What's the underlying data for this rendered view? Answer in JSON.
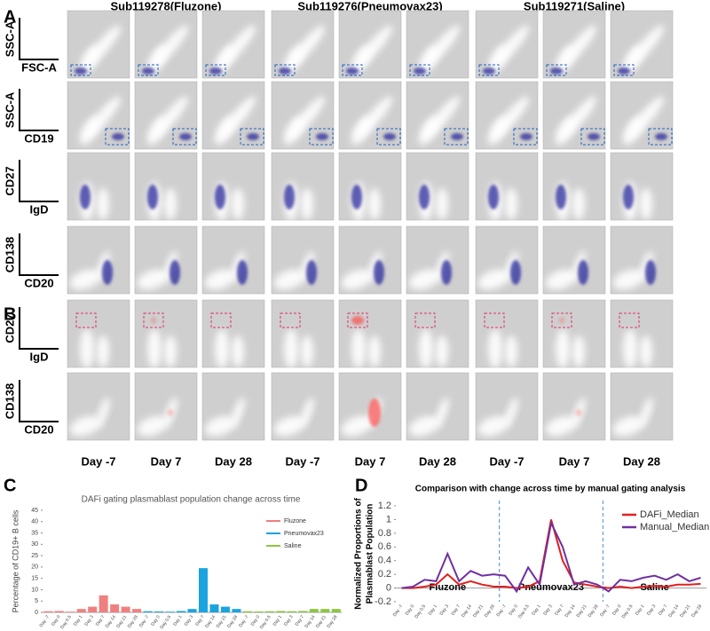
{
  "panel_labels": [
    "A",
    "B",
    "C",
    "D"
  ],
  "flow": {
    "groups": [
      "Sub119278(Fluzone)",
      "Sub119276(Pneumovax23)",
      "Sub119271(Saline)"
    ],
    "days": [
      "Day -7",
      "Day 7",
      "Day 28"
    ],
    "rows": [
      {
        "y": "SSC-A",
        "x": "FSC-A"
      },
      {
        "y": "SSC-A",
        "x": "CD19"
      },
      {
        "y": "CD27",
        "x": "IgD"
      },
      {
        "y": "CD138",
        "x": "CD20"
      },
      {
        "y": "CD27",
        "x": "IgD"
      },
      {
        "y": "CD138",
        "x": "CD20"
      }
    ]
  },
  "chart_data": [
    {
      "type": "bar",
      "title": "DAFi gating plasmablast population change across time",
      "ylabel": "Percentage of CD19+ B cells",
      "categories": [
        "Day -7",
        "Day 0",
        "Day 0.5",
        "Day 1",
        "Day 3",
        "Day 7",
        "Day 14",
        "Day 21",
        "Day 28",
        "Day -7",
        "Day 0",
        "Day 0.5",
        "Day 1",
        "Day 3",
        "Day 7",
        "Day 14",
        "Day 21",
        "Day 28",
        "Day -7",
        "Day 0",
        "Day 0.5",
        "Day 1",
        "Day 3",
        "Day 7",
        "Day 14",
        "Day 21",
        "Day 28"
      ],
      "series": [
        {
          "name": "Fluzone",
          "color": "#f08080",
          "values": [
            0.5,
            0.6,
            0.3,
            1.5,
            2.5,
            7.5,
            3.5,
            2.5,
            1.5,
            null,
            null,
            null,
            null,
            null,
            null,
            null,
            null,
            null,
            null,
            null,
            null,
            null,
            null,
            null,
            null,
            null,
            null
          ]
        },
        {
          "name": "Pneumovax23",
          "color": "#1aa3e0",
          "values": [
            null,
            null,
            null,
            null,
            null,
            null,
            null,
            null,
            null,
            0.5,
            0.4,
            0.3,
            0.6,
            1.5,
            19.5,
            3.5,
            2.5,
            1.5,
            null,
            null,
            null,
            null,
            null,
            null,
            null,
            null,
            null
          ]
        },
        {
          "name": "Saline",
          "color": "#8cc63f",
          "values": [
            null,
            null,
            null,
            null,
            null,
            null,
            null,
            null,
            null,
            null,
            null,
            null,
            null,
            null,
            null,
            null,
            null,
            null,
            0.5,
            0.4,
            0.5,
            0.6,
            0.5,
            0.6,
            1.5,
            1.5,
            1.5
          ]
        }
      ],
      "ylim": [
        0,
        45
      ],
      "yticks": [
        0,
        5,
        10,
        15,
        20,
        25,
        30,
        35,
        40,
        45
      ],
      "legend": "upper right"
    },
    {
      "type": "line",
      "title": "Comparison with change across time by manual gating analysis",
      "ylabel": [
        "Normalized Proportions of",
        "Plasmablast Population"
      ],
      "categories": [
        "Day -7",
        "Day 0",
        "Day 0.5",
        "Day 1",
        "Day 3",
        "Day 7",
        "Day 14",
        "Day 21",
        "Day 28",
        "Day -7",
        "Day 0",
        "Day 0.5",
        "Day 1",
        "Day 3",
        "Day 7",
        "Day 14",
        "Day 21",
        "Day 28",
        "Day -7",
        "Day 0",
        "Day 0.5",
        "Day 1",
        "Day 3",
        "Day 7",
        "Day 14",
        "Day 21",
        "Day 28"
      ],
      "series": [
        {
          "name": "DAFi_Median",
          "color": "#e02020",
          "values": [
            0,
            0,
            0.02,
            0.05,
            0.2,
            0.05,
            0.1,
            0.05,
            0.02,
            0.02,
            0,
            0.02,
            0.1,
            1.0,
            0.4,
            0.08,
            0.05,
            0.02,
            0,
            0.02,
            0,
            0.02,
            0.03,
            0.02,
            0.05,
            0.05,
            0.06
          ]
        },
        {
          "name": "Manual_Median",
          "color": "#7030a0",
          "values": [
            0,
            0.02,
            0.12,
            0.1,
            0.5,
            0.1,
            0.25,
            0.18,
            0.2,
            0.18,
            -0.05,
            0.3,
            0.05,
            0.95,
            0.6,
            0.05,
            0.1,
            0.05,
            -0.05,
            0.12,
            0.1,
            0.15,
            0.18,
            0.12,
            0.2,
            0.1,
            0.15
          ]
        }
      ],
      "annotations": [
        "Fluzone",
        "Pneumovax23",
        "Saline"
      ],
      "ylim": [
        -0.2,
        1.2
      ],
      "yticks": [
        -0.2,
        0,
        0.2,
        0.4,
        0.6,
        0.8,
        1,
        1.2
      ],
      "legend": "upper right"
    }
  ]
}
